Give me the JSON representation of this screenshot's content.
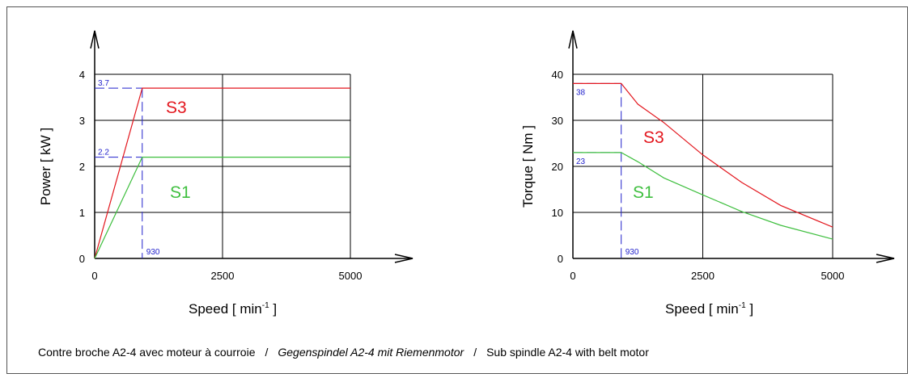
{
  "caption": {
    "fr": "Contre broche A2-4 avec moteur à courroie",
    "sep1": "/",
    "de": "Gegenspindel A2-4 mit Riemenmotor",
    "sep2": "/",
    "en": "Sub spindle A2-4 with belt motor"
  },
  "colors": {
    "S3": "#e3171e",
    "S1": "#3fbf3f",
    "ref": "#2222cc",
    "grid": "#000000"
  },
  "chart_data": [
    {
      "type": "line",
      "ylabel": "Power   [ kW ]",
      "xlabel": "Speed   [ min",
      "xlabel_sup": "-1",
      "xlabel_end": " ]",
      "xlim": [
        0,
        5000
      ],
      "ylim": [
        0,
        4
      ],
      "xticks": [
        "0",
        "2500",
        "5000"
      ],
      "yticks": [
        "0",
        "1",
        "2",
        "3",
        "4"
      ],
      "grid": true,
      "series": [
        {
          "name": "S3",
          "x": [
            0,
            930,
            5000
          ],
          "y": [
            0,
            3.7,
            3.7
          ]
        },
        {
          "name": "S1",
          "x": [
            0,
            930,
            5000
          ],
          "y": [
            0,
            2.2,
            2.2
          ]
        }
      ],
      "annotations": {
        "x_marker": "930",
        "y_markers": [
          "3.7",
          "2.2"
        ]
      }
    },
    {
      "type": "line",
      "ylabel": "Torque   [ Nm ]",
      "xlabel": "Speed   [ min",
      "xlabel_sup": "-1",
      "xlabel_end": " ]",
      "xlim": [
        0,
        5000
      ],
      "ylim": [
        0,
        40
      ],
      "xticks": [
        "0",
        "2500",
        "5000"
      ],
      "yticks": [
        "0",
        "10",
        "20",
        "30",
        "40"
      ],
      "grid": true,
      "series": [
        {
          "name": "S3",
          "x": [
            0,
            930,
            1250,
            1750,
            2500,
            3250,
            4000,
            5000
          ],
          "y": [
            38,
            38,
            33.5,
            29.5,
            22.5,
            16.5,
            11.5,
            6.8
          ]
        },
        {
          "name": "S1",
          "x": [
            0,
            930,
            1250,
            1750,
            2500,
            3250,
            4000,
            5000
          ],
          "y": [
            23,
            23,
            21,
            17.5,
            13.8,
            10.2,
            7.2,
            4.2
          ]
        }
      ],
      "annotations": {
        "x_marker": "930",
        "y_markers": [
          "38",
          "23"
        ]
      }
    }
  ]
}
